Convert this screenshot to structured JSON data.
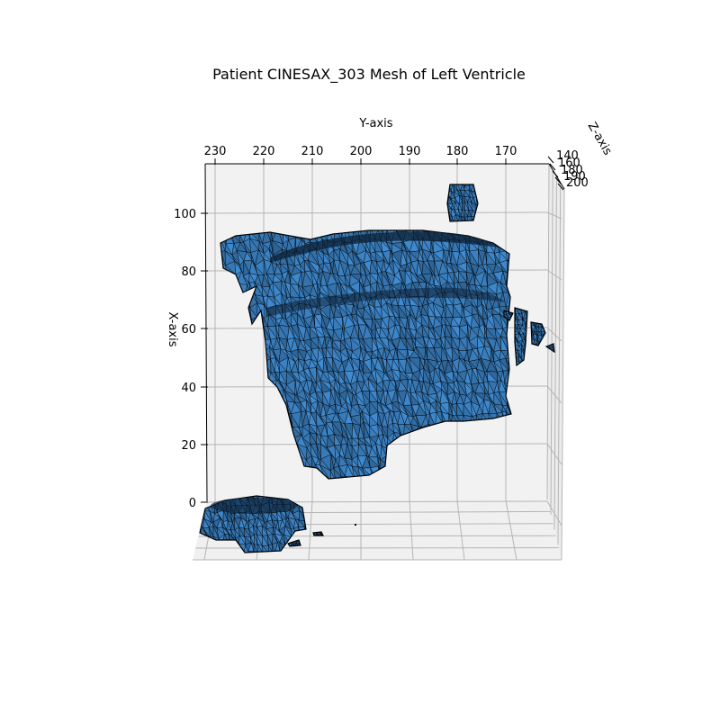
{
  "chart_data": {
    "type": "surface",
    "title": "Patient CINESAX_303 Mesh of Left Ventricle",
    "xlabel": "X-axis",
    "ylabel": "Y-axis",
    "zlabel": "Z-axis",
    "x_ticks": [
      "0",
      "20",
      "40",
      "60",
      "80",
      "100"
    ],
    "y_ticks": [
      "230",
      "220",
      "210",
      "200",
      "190",
      "180",
      "170"
    ],
    "z_ticks": [
      "140",
      "160",
      "180",
      "190",
      "200"
    ],
    "xlim": [
      0,
      110
    ],
    "ylim": [
      235,
      162
    ],
    "grid": true,
    "face_color": "#3a7fbf",
    "edge_color": "#000000",
    "pane_color": "#f2f2f2",
    "grid_color": "#b0b0b0"
  }
}
